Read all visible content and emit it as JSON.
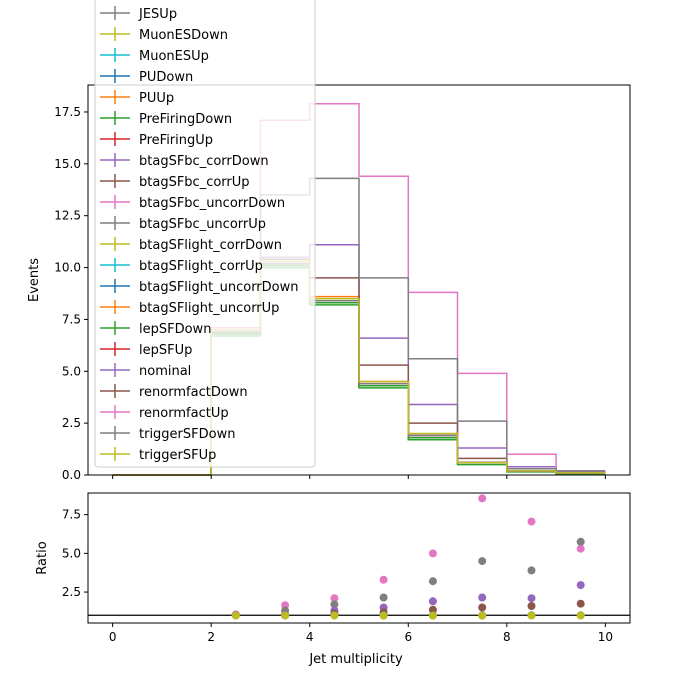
{
  "chart_data": [
    {
      "type": "line",
      "panel": "main",
      "title": "",
      "xlabel": "",
      "ylabel": "Events",
      "xlim": [
        -0.5,
        10.5
      ],
      "ylim": [
        0,
        18.8
      ],
      "xticks": [
        0,
        2,
        4,
        6,
        8,
        10
      ],
      "yticks": [
        0.0,
        2.5,
        5.0,
        7.5,
        10.0,
        12.5,
        15.0,
        17.5
      ],
      "ytick_labels": [
        "0.0",
        "2.5",
        "5.0",
        "7.5",
        "10.0",
        "12.5",
        "15.0",
        "17.5"
      ],
      "grid": false,
      "legend_position": "top-left",
      "bin_edges": [
        0,
        1,
        2,
        3,
        4,
        5,
        6,
        7,
        8,
        9,
        10
      ],
      "series": [
        {
          "name": "JESUp",
          "color": "#7f7f7f",
          "values": [
            0,
            0,
            6.9,
            10.2,
            8.4,
            4.4,
            1.9,
            0.6,
            0.2,
            0.1
          ]
        },
        {
          "name": "MuonESDown",
          "color": "#bcbd22",
          "values": [
            0,
            0,
            6.9,
            10.2,
            8.4,
            4.4,
            1.9,
            0.6,
            0.2,
            0.1
          ]
        },
        {
          "name": "MuonESUp",
          "color": "#17becf",
          "values": [
            0,
            0,
            6.9,
            10.2,
            8.4,
            4.4,
            1.9,
            0.6,
            0.2,
            0.1
          ]
        },
        {
          "name": "PUDown",
          "color": "#1f77b4",
          "values": [
            0,
            0,
            6.9,
            10.2,
            8.4,
            4.4,
            1.9,
            0.6,
            0.2,
            0.1
          ]
        },
        {
          "name": "PUUp",
          "color": "#ff7f0e",
          "values": [
            0,
            0,
            6.9,
            10.3,
            8.6,
            4.5,
            1.9,
            0.6,
            0.2,
            0.1
          ]
        },
        {
          "name": "PreFiringDown",
          "color": "#2ca02c",
          "values": [
            0,
            0,
            6.7,
            10.0,
            8.2,
            4.2,
            1.7,
            0.5,
            0.15,
            0.05
          ]
        },
        {
          "name": "PreFiringUp",
          "color": "#d62728",
          "values": [
            0,
            0,
            6.9,
            10.3,
            8.5,
            4.5,
            1.9,
            0.6,
            0.2,
            0.1
          ]
        },
        {
          "name": "btagSFbc_corrDown",
          "color": "#9467bd",
          "values": [
            0,
            0,
            7.0,
            10.5,
            11.1,
            6.6,
            3.4,
            1.3,
            0.4,
            0.15
          ]
        },
        {
          "name": "btagSFbc_corrUp",
          "color": "#8c564b",
          "values": [
            0,
            0,
            6.9,
            10.4,
            9.5,
            5.3,
            2.5,
            0.8,
            0.3,
            0.1
          ]
        },
        {
          "name": "btagSFbc_uncorrDown",
          "color": "#e377c2",
          "values": [
            0,
            0,
            7.1,
            17.1,
            17.9,
            14.4,
            8.8,
            4.9,
            1.0,
            0.2
          ]
        },
        {
          "name": "btagSFbc_uncorrUp",
          "color": "#7f7f7f",
          "values": [
            0,
            0,
            7.0,
            13.5,
            14.3,
            9.5,
            5.6,
            2.6,
            0.3,
            0.2
          ]
        },
        {
          "name": "btagSFlight_corrDown",
          "color": "#bcbd22",
          "values": [
            0,
            0,
            6.8,
            10.1,
            8.3,
            4.3,
            1.8,
            0.6,
            0.2,
            0.1
          ]
        },
        {
          "name": "btagSFlight_corrUp",
          "color": "#17becf",
          "values": [
            0,
            0,
            6.8,
            10.1,
            8.3,
            4.3,
            1.8,
            0.6,
            0.2,
            0.1
          ]
        },
        {
          "name": "btagSFlight_uncorrDown",
          "color": "#1f77b4",
          "values": [
            0,
            0,
            6.8,
            10.1,
            8.3,
            4.3,
            1.8,
            0.6,
            0.2,
            0.1
          ]
        },
        {
          "name": "btagSFlight_uncorrUp",
          "color": "#ff7f0e",
          "values": [
            0,
            0,
            6.8,
            10.1,
            8.3,
            4.3,
            1.8,
            0.6,
            0.2,
            0.1
          ]
        },
        {
          "name": "lepSFDown",
          "color": "#2ca02c",
          "values": [
            0,
            0,
            6.8,
            10.1,
            8.3,
            4.3,
            1.8,
            0.6,
            0.2,
            0.1
          ]
        },
        {
          "name": "lepSFUp",
          "color": "#d62728",
          "values": [
            0,
            0,
            6.9,
            10.2,
            8.4,
            4.4,
            1.9,
            0.6,
            0.2,
            0.1
          ]
        },
        {
          "name": "nominal",
          "color": "#9467bd",
          "values": [
            0,
            0,
            6.9,
            10.2,
            8.4,
            4.4,
            1.9,
            0.6,
            0.2,
            0.1
          ]
        },
        {
          "name": "renormfactDown",
          "color": "#8c564b",
          "values": [
            0,
            0,
            6.9,
            10.3,
            8.5,
            4.4,
            1.9,
            0.6,
            0.2,
            0.1
          ]
        },
        {
          "name": "renormfactUp",
          "color": "#e377c2",
          "values": [
            0,
            0,
            6.9,
            10.2,
            8.4,
            4.4,
            1.9,
            0.6,
            0.2,
            0.1
          ]
        },
        {
          "name": "triggerSFDown",
          "color": "#7f7f7f",
          "values": [
            0,
            0,
            6.9,
            10.2,
            8.4,
            4.4,
            1.9,
            0.6,
            0.2,
            0.1
          ]
        },
        {
          "name": "triggerSFUp",
          "color": "#bcbd22",
          "values": [
            0,
            0,
            7.0,
            10.3,
            8.5,
            4.5,
            2.0,
            0.6,
            0.2,
            0.1
          ]
        }
      ]
    },
    {
      "type": "scatter",
      "panel": "ratio",
      "title": "",
      "xlabel": "Jet multiplicity",
      "ylabel": "Ratio",
      "xlim": [
        -0.5,
        10.5
      ],
      "ylim": [
        0.5,
        8.9
      ],
      "xticks": [
        0,
        2,
        4,
        6,
        8,
        10
      ],
      "yticks": [
        2.5,
        5.0,
        7.5
      ],
      "ytick_labels": [
        "2.5",
        "5.0",
        "7.5"
      ],
      "reference_line": 1.0,
      "grid": false,
      "points": [
        {
          "color": "#e377c2",
          "x": [
            2.5,
            3.5,
            4.5,
            5.5,
            6.5,
            7.5,
            8.5,
            9.5
          ],
          "y": [
            1.05,
            1.65,
            2.1,
            3.3,
            5.0,
            8.55,
            7.05,
            5.3
          ]
        },
        {
          "color": "#7f7f7f",
          "x": [
            2.5,
            3.5,
            4.5,
            5.5,
            6.5,
            7.5,
            8.5,
            9.5
          ],
          "y": [
            1.0,
            1.3,
            1.7,
            2.15,
            3.2,
            4.5,
            3.9,
            5.75
          ]
        },
        {
          "color": "#9467bd",
          "x": [
            2.5,
            3.5,
            4.5,
            5.5,
            6.5,
            7.5,
            8.5,
            9.5
          ],
          "y": [
            1.0,
            1.05,
            1.3,
            1.5,
            1.9,
            2.15,
            2.1,
            2.95
          ]
        },
        {
          "color": "#8c564b",
          "x": [
            2.5,
            3.5,
            4.5,
            5.5,
            6.5,
            7.5,
            8.5,
            9.5
          ],
          "y": [
            1.0,
            1.0,
            1.1,
            1.2,
            1.35,
            1.5,
            1.6,
            1.75
          ]
        },
        {
          "color": "#7f7f7f",
          "x": [
            2.5,
            3.5,
            4.5,
            5.5,
            6.5,
            7.5,
            8.5,
            9.5
          ],
          "y": [
            1.0,
            1.0,
            1.0,
            1.0,
            1.0,
            1.0,
            1.0,
            1.0
          ]
        },
        {
          "color": "#bcbd22",
          "x": [
            2.5,
            3.5,
            4.5,
            5.5,
            6.5,
            7.5,
            8.5,
            9.5
          ],
          "y": [
            0.98,
            0.98,
            0.98,
            0.97,
            0.97,
            0.97,
            0.98,
            0.98
          ]
        }
      ]
    }
  ]
}
